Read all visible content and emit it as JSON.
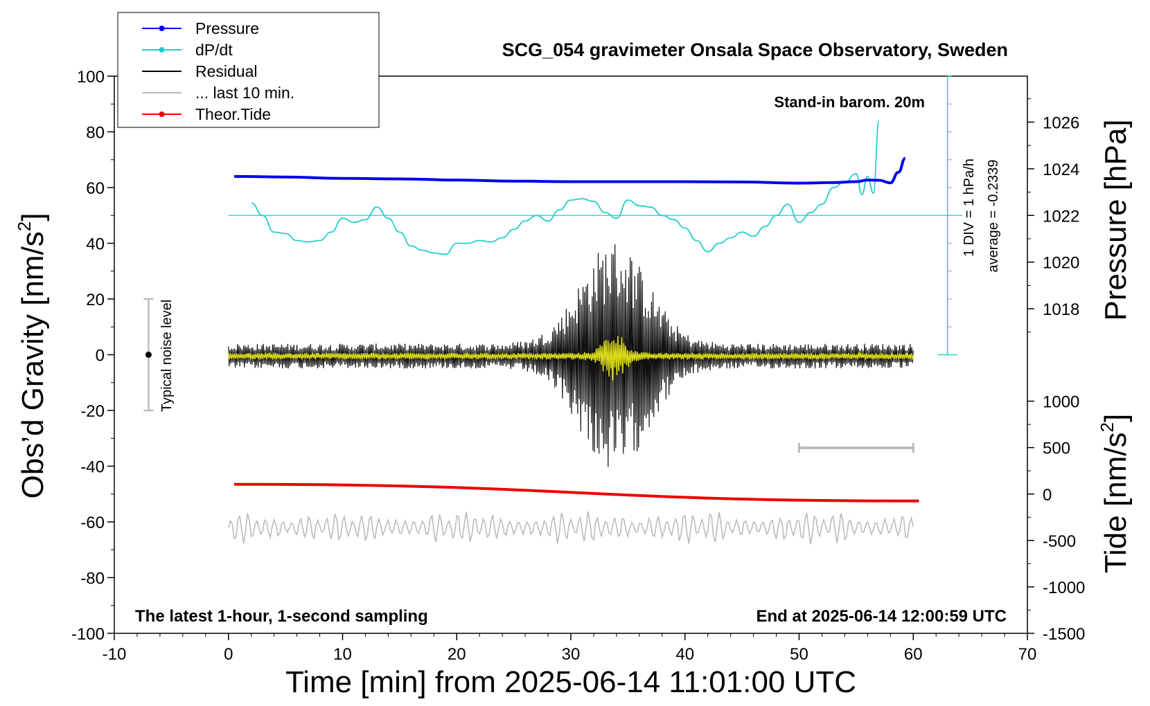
{
  "chart_data": {
    "type": "line",
    "title": "SCG_054 gravimeter Onsala Space Observatory, Sweden",
    "xlabel": "Time [min] from 2025-06-14 11:01:00 UTC",
    "ylabel": "Obs’d Gravity [nm/s²]",
    "ylabel_parts": {
      "text": "Obs’d Gravity [nm/s",
      "sup": "2",
      "end": "]"
    },
    "y2label_pressure": "Pressure [hPa]",
    "y2label_tide": "Tide [nm/s²]",
    "y2label_tide_parts": {
      "text": "Tide [nm/s",
      "sup": "2",
      "end": "]"
    },
    "xlim": [
      -10,
      70
    ],
    "ylim": [
      -100,
      100
    ],
    "pressure_lim": [
      1016,
      1028
    ],
    "tide_lim": [
      -1500,
      1500
    ],
    "x_ticks": [
      "-10",
      "0",
      "10",
      "20",
      "30",
      "40",
      "50",
      "60",
      "70"
    ],
    "y_ticks": [
      "-100",
      "-80",
      "-60",
      "-40",
      "-20",
      "0",
      "20",
      "40",
      "60",
      "80",
      "100"
    ],
    "pressure_ticks": [
      "1018",
      "1020",
      "1022",
      "1024",
      "1026"
    ],
    "tide_ticks": [
      "-1500",
      "-1000",
      "-500",
      "0",
      "500",
      "1000"
    ],
    "legend": {
      "placement": "top-left",
      "entries": [
        {
          "label": "Pressure",
          "color": "#0000ee",
          "marker": "dot"
        },
        {
          "label": "dP/dt",
          "color": "#22cccc",
          "marker": "dot"
        },
        {
          "label": "Residual",
          "color": "#000000",
          "marker": "none"
        },
        {
          "label": "... last 10 min.",
          "color": "#bbbbbb",
          "marker": "none"
        },
        {
          "label": "Theor.Tide",
          "color": "#ee0000",
          "marker": "dot"
        }
      ]
    },
    "annotations": {
      "stand_in": "Stand-in barom. 20m",
      "scale_div": "1 DIV = 1 hPa/h",
      "average": "average = -0.2339",
      "noise": "Typical noise level",
      "latest": "The latest 1-hour, 1-second sampling",
      "end_at": "End at 2025-06-14 12:00:59 UTC"
    },
    "noise_bar": {
      "x": -7,
      "y": [
        -20,
        20
      ]
    },
    "last10_bar": {
      "x": [
        50,
        60
      ]
    },
    "dpdt_baseline_y": 50,
    "series": [
      {
        "name": "Pressure",
        "color": "#0000ee",
        "x": [
          0.5,
          5,
          10,
          15,
          20,
          25,
          30,
          35,
          40,
          45,
          50,
          53,
          55,
          56,
          57,
          58,
          58.7,
          59.3
        ],
        "y": [
          64,
          63.8,
          63.3,
          63.1,
          62.7,
          62.3,
          62.1,
          62.1,
          62.1,
          62.0,
          61.6,
          61.8,
          62.1,
          62.7,
          62.6,
          61.7,
          65.5,
          70.5
        ]
      },
      {
        "name": "dP/dt",
        "color": "#22cccc",
        "x": [
          2,
          3,
          4,
          5,
          6,
          7,
          8,
          9,
          10,
          11,
          12,
          13,
          14,
          15,
          16,
          17,
          18,
          19,
          20,
          21,
          22,
          23,
          24,
          25,
          26,
          27,
          28,
          29,
          30,
          31,
          32,
          33,
          34,
          35,
          36,
          37,
          38,
          39,
          40,
          41,
          42,
          43,
          44,
          45,
          46,
          47,
          48,
          49,
          50,
          51,
          52,
          53,
          54,
          55,
          55.5,
          56,
          56.5,
          57
        ],
        "y": [
          54.5,
          50,
          44,
          43.5,
          41,
          40.5,
          41,
          44,
          49,
          47.5,
          48.5,
          53,
          49,
          44,
          39,
          37.5,
          36.5,
          36,
          40,
          40,
          41,
          40.5,
          42,
          45,
          48,
          50,
          48,
          52,
          55.5,
          56,
          55,
          51,
          49,
          55.5,
          53.5,
          53,
          50,
          48.5,
          45.5,
          41,
          37,
          40,
          42,
          44,
          42.5,
          46,
          50,
          54,
          47.5,
          51,
          54,
          60,
          62,
          65,
          57.5,
          64,
          58,
          84
        ]
      },
      {
        "name": "Residual",
        "color": "#111111",
        "x_range": [
          0,
          60
        ],
        "noise_amplitude": 4.5,
        "burst": {
          "center_min": 33.8,
          "peak_amplitude": 42,
          "extent_min": 26
        }
      },
      {
        "name": "Residual (filtered)",
        "color": "#d7d71a",
        "x_range": [
          0,
          60
        ],
        "noise_amplitude": 1.2,
        "burst": {
          "center_min": 33.8,
          "peak_amplitude": 9,
          "extent_min": 8
        }
      },
      {
        "name": "... last 10 min.",
        "color": "#bbbbbb",
        "x_range": [
          0,
          60
        ],
        "center_y": -62,
        "amplitude": 7
      },
      {
        "name": "Theor.Tide",
        "color": "#ee0000",
        "x": [
          0.5,
          60.5
        ],
        "y": [
          -46.5,
          -52.5
        ]
      }
    ]
  }
}
